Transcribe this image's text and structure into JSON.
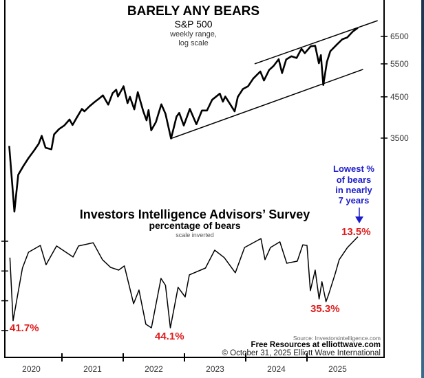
{
  "chart_data": [
    {
      "type": "line",
      "title": "BARELY ANY BEARS",
      "subtitle": "S&P 500",
      "notes": [
        "weekly range,",
        "log scale"
      ],
      "yscale": "log",
      "yaxis_position": "right",
      "yticks": [
        3500,
        4500,
        5500,
        6500
      ],
      "ylim": [
        2100,
        8000
      ],
      "xlim": [
        "2020-01-01",
        "2026-03-01"
      ],
      "xticks": [
        "2020",
        "2021",
        "2022",
        "2023",
        "2024",
        "2025"
      ],
      "series": [
        {
          "points": [
            [
              "2020-02-21",
              3337
            ],
            [
              "2020-03-23",
              2237
            ],
            [
              "2020-04-15",
              2800
            ],
            [
              "2020-05-15",
              2950
            ],
            [
              "2020-06-15",
              3100
            ],
            [
              "2020-07-15",
              3230
            ],
            [
              "2020-08-15",
              3380
            ],
            [
              "2020-09-02",
              3550
            ],
            [
              "2020-09-25",
              3300
            ],
            [
              "2020-10-30",
              3270
            ],
            [
              "2020-11-15",
              3580
            ],
            [
              "2020-12-15",
              3700
            ],
            [
              "2021-01-15",
              3780
            ],
            [
              "2021-02-15",
              3920
            ],
            [
              "2021-03-05",
              3790
            ],
            [
              "2021-03-31",
              3970
            ],
            [
              "2021-04-30",
              4180
            ],
            [
              "2021-05-15",
              4120
            ],
            [
              "2021-06-15",
              4250
            ],
            [
              "2021-07-15",
              4360
            ],
            [
              "2021-08-15",
              4470
            ],
            [
              "2021-09-02",
              4540
            ],
            [
              "2021-10-04",
              4290
            ],
            [
              "2021-10-30",
              4600
            ],
            [
              "2021-11-20",
              4700
            ],
            [
              "2021-12-01",
              4510
            ],
            [
              "2021-12-31",
              4770
            ],
            [
              "2022-01-03",
              4800
            ],
            [
              "2022-01-27",
              4330
            ],
            [
              "2022-02-10",
              4500
            ],
            [
              "2022-03-08",
              4170
            ],
            [
              "2022-03-29",
              4630
            ],
            [
              "2022-04-30",
              4130
            ],
            [
              "2022-05-20",
              3900
            ],
            [
              "2022-06-01",
              4150
            ],
            [
              "2022-06-17",
              3670
            ],
            [
              "2022-07-15",
              3860
            ],
            [
              "2022-08-16",
              4300
            ],
            [
              "2022-09-10",
              4060
            ],
            [
              "2022-10-13",
              3491
            ],
            [
              "2022-11-15",
              3990
            ],
            [
              "2022-12-01",
              4080
            ],
            [
              "2022-12-28",
              3780
            ],
            [
              "2023-02-02",
              4180
            ],
            [
              "2023-03-13",
              3810
            ],
            [
              "2023-04-15",
              4140
            ],
            [
              "2023-05-15",
              4140
            ],
            [
              "2023-06-15",
              4420
            ],
            [
              "2023-07-31",
              4590
            ],
            [
              "2023-08-18",
              4370
            ],
            [
              "2023-09-01",
              4510
            ],
            [
              "2023-10-27",
              4120
            ],
            [
              "2023-11-15",
              4500
            ],
            [
              "2023-12-15",
              4720
            ],
            [
              "2024-01-15",
              4800
            ],
            [
              "2024-02-15",
              5030
            ],
            [
              "2024-03-28",
              5250
            ],
            [
              "2024-04-19",
              4970
            ],
            [
              "2024-05-20",
              5300
            ],
            [
              "2024-06-15",
              5430
            ],
            [
              "2024-07-16",
              5660
            ],
            [
              "2024-08-05",
              5200
            ],
            [
              "2024-08-30",
              5650
            ],
            [
              "2024-09-30",
              5760
            ],
            [
              "2024-10-31",
              5700
            ],
            [
              "2024-11-29",
              6030
            ],
            [
              "2024-12-19",
              5870
            ],
            [
              "2025-01-23",
              6120
            ],
            [
              "2025-02-19",
              6140
            ],
            [
              "2025-03-13",
              5520
            ],
            [
              "2025-03-25",
              5800
            ],
            [
              "2025-04-08",
              4835
            ],
            [
              "2025-04-30",
              5570
            ],
            [
              "2025-05-20",
              5940
            ],
            [
              "2025-06-30",
              6200
            ],
            [
              "2025-07-31",
              6390
            ],
            [
              "2025-08-29",
              6460
            ],
            [
              "2025-09-30",
              6690
            ],
            [
              "2025-10-31",
              6850
            ]
          ]
        }
      ],
      "trendlines": [
        {
          "from": [
            "2022-10-13",
            3491
          ],
          "to": [
            "2025-12-01",
            5318
          ]
        },
        {
          "from": [
            "2024-02-23",
            5500
          ],
          "to": [
            "2026-02-26",
            7157
          ]
        }
      ]
    },
    {
      "type": "line",
      "title": "Investors Intelligence Advisors’ Survey",
      "subtitle": "percentage of bears",
      "notes": [
        "scale inverted"
      ],
      "yinverted": true,
      "yaxis_position": "left",
      "yticks": [
        15,
        25,
        35,
        45
      ],
      "ylim": [
        13,
        45
      ],
      "series": [
        {
          "points": [
            [
              "2020-02-25",
              20.5
            ],
            [
              "2020-03-15",
              41.7
            ],
            [
              "2020-05-10",
              24
            ],
            [
              "2020-06-15",
              18.7
            ],
            [
              "2020-08-25",
              16.4
            ],
            [
              "2020-09-28",
              22.9
            ],
            [
              "2020-11-30",
              16.6
            ],
            [
              "2021-03-08",
              20.3
            ],
            [
              "2021-04-10",
              16.6
            ],
            [
              "2021-07-06",
              15.5
            ],
            [
              "2021-08-30",
              21.2
            ],
            [
              "2021-10-18",
              23.8
            ],
            [
              "2021-12-05",
              24.7
            ],
            [
              "2022-01-08",
              23.3
            ],
            [
              "2022-03-04",
              36
            ],
            [
              "2022-04-05",
              31.4
            ],
            [
              "2022-05-16",
              42.9
            ],
            [
              "2022-06-18",
              44.1
            ],
            [
              "2022-08-14",
              27.5
            ],
            [
              "2022-09-10",
              29.8
            ],
            [
              "2022-10-09",
              44.1
            ],
            [
              "2022-11-24",
              30.5
            ],
            [
              "2023-01-05",
              33.7
            ],
            [
              "2023-01-30",
              26.3
            ],
            [
              "2023-05-06",
              24
            ],
            [
              "2023-06-30",
              18
            ],
            [
              "2023-08-26",
              20.5
            ],
            [
              "2023-10-31",
              25.6
            ],
            [
              "2023-12-25",
              17.1
            ],
            [
              "2024-04-01",
              14.1
            ],
            [
              "2024-04-25",
              21.2
            ],
            [
              "2024-05-28",
              17.1
            ],
            [
              "2024-07-23",
              15.2
            ],
            [
              "2024-09-02",
              22.4
            ],
            [
              "2024-11-04",
              21.7
            ],
            [
              "2024-12-07",
              16.2
            ],
            [
              "2025-01-01",
              16.4
            ],
            [
              "2025-01-21",
              31.6
            ],
            [
              "2025-02-19",
              24.7
            ],
            [
              "2025-03-14",
              34.4
            ],
            [
              "2025-03-31",
              28.6
            ],
            [
              "2025-04-24",
              35.3
            ],
            [
              "2025-05-08",
              33.2
            ],
            [
              "2025-06-18",
              25.9
            ],
            [
              "2025-07-12",
              21.2
            ],
            [
              "2025-08-30",
              17.1
            ],
            [
              "2025-10-31",
              13.5
            ]
          ]
        }
      ],
      "annotations": [
        {
          "text": "41.7%",
          "color": "#e01b1b"
        },
        {
          "text": "44.1%",
          "color": "#e01b1b"
        },
        {
          "text": "35.3%",
          "color": "#e01b1b"
        },
        {
          "text": "13.5%",
          "color": "#e01b1b"
        }
      ],
      "callout": {
        "lines": [
          "Lowest %",
          "of bears",
          "in nearly",
          "7 years"
        ],
        "color": "#1c1ccc"
      }
    }
  ],
  "footer": {
    "source": "Source: Investorsintelligence.com",
    "resources": "Free Resources at elliottwave.com",
    "copyright": "© October 31, 2025  Elliott Wave International"
  }
}
